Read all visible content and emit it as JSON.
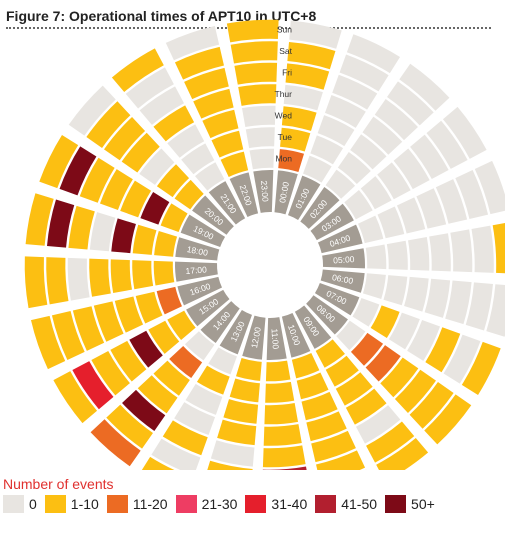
{
  "title": "Figure 7: Operational times of APT10 in UTC+8",
  "chart_data": {
    "type": "radial-heatmap",
    "title": "Figure 7: Operational times of APT10 in UTC+8",
    "days": [
      "Mon",
      "Tue",
      "Wed",
      "Thur",
      "Fri",
      "Sat",
      "Sun"
    ],
    "hours": [
      "00:00",
      "01:00",
      "02:00",
      "03:00",
      "04:00",
      "05:00",
      "06:00",
      "07:00",
      "08:00",
      "09:00",
      "10:00",
      "11:00",
      "12:00",
      "13:00",
      "14:00",
      "15:00",
      "16:00",
      "17:00",
      "18:00",
      "19:00",
      "20:00",
      "21:00",
      "22:00",
      "23:00"
    ],
    "legend_title": "Number of events",
    "bins": [
      {
        "label": "0",
        "color": "#e8e5e1"
      },
      {
        "label": "1-10",
        "color": "#fcbf12"
      },
      {
        "label": "11-20",
        "color": "#ec6b23"
      },
      {
        "label": "21-30",
        "color": "#ee3d63"
      },
      {
        "label": "31-40",
        "color": "#e51f2c"
      },
      {
        "label": "41-50",
        "color": "#b21f2f"
      },
      {
        "label": "50+",
        "color": "#7d0a17"
      }
    ],
    "matrix": [
      [
        2,
        0,
        0,
        0,
        0,
        0,
        0,
        0,
        0,
        1,
        1,
        1,
        1,
        0,
        0,
        1,
        2,
        1,
        1,
        1,
        1,
        0,
        1,
        0
      ],
      [
        1,
        0,
        0,
        0,
        0,
        0,
        0,
        1,
        2,
        1,
        1,
        1,
        1,
        1,
        2,
        1,
        1,
        1,
        1,
        6,
        1,
        0,
        1,
        0
      ],
      [
        1,
        0,
        0,
        0,
        0,
        0,
        0,
        0,
        2,
        1,
        1,
        1,
        1,
        0,
        1,
        6,
        1,
        1,
        6,
        1,
        0,
        0,
        1,
        0
      ],
      [
        0,
        0,
        0,
        0,
        0,
        0,
        0,
        0,
        1,
        1,
        1,
        1,
        1,
        0,
        1,
        1,
        1,
        1,
        0,
        1,
        1,
        1,
        1,
        1
      ],
      [
        1,
        0,
        0,
        0,
        0,
        0,
        0,
        1,
        1,
        0,
        1,
        1,
        0,
        1,
        6,
        1,
        1,
        0,
        1,
        1,
        1,
        0,
        1,
        1
      ],
      [
        1,
        0,
        0,
        0,
        0,
        0,
        0,
        0,
        1,
        1,
        1,
        5,
        1,
        0,
        1,
        4,
        1,
        1,
        6,
        6,
        1,
        0,
        1,
        1
      ],
      [
        0,
        0,
        0,
        0,
        0,
        1,
        0,
        1,
        1,
        1,
        1,
        1,
        1,
        1,
        2,
        1,
        1,
        1,
        1,
        1,
        0,
        1,
        0,
        1
      ]
    ]
  }
}
